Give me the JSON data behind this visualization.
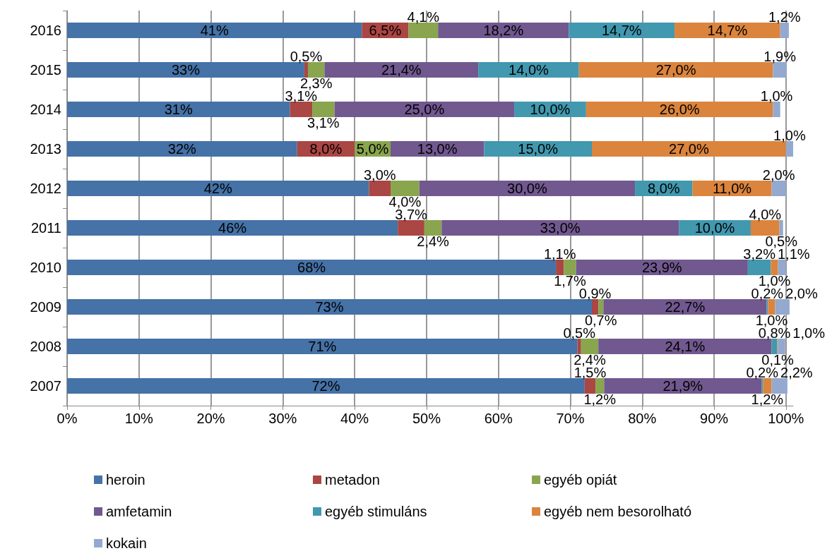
{
  "chart_data": {
    "type": "bar",
    "orientation": "horizontal",
    "stacked": true,
    "categories": [
      "2016",
      "2015",
      "2014",
      "2013",
      "2012",
      "2011",
      "2010",
      "2009",
      "2008",
      "2007"
    ],
    "series": [
      {
        "name": "heroin",
        "color": "#4572a7",
        "values": [
          41,
          33,
          31,
          32,
          42,
          46,
          68,
          73,
          71,
          72
        ],
        "value_labels": [
          "41%",
          "33%",
          "31%",
          "32%",
          "42%",
          "46%",
          "68%",
          "73%",
          "71%",
          "72%"
        ]
      },
      {
        "name": "metadon",
        "color": "#aa4643",
        "values": [
          6.5,
          0.5,
          3.1,
          8.0,
          3.0,
          3.7,
          1.1,
          0.9,
          0.5,
          1.5
        ],
        "value_labels": [
          "6,5%",
          "0,5%",
          "3,1%",
          "8,0%",
          "3,0%",
          "3,7%",
          "1,1%",
          "0,9%",
          "0,5%",
          "1,5%"
        ]
      },
      {
        "name": "egyéb opiát",
        "color": "#89a54e",
        "values": [
          4.1,
          2.3,
          3.1,
          5.0,
          4.0,
          2.4,
          1.7,
          0.7,
          2.4,
          1.2
        ],
        "value_labels": [
          "4,1%",
          "2,3%",
          "3,1%",
          "5,0%",
          "4,0%",
          "2,4%",
          "1,7%",
          "0,7%",
          "2,4%",
          "1,2%"
        ]
      },
      {
        "name": "amfetamin",
        "color": "#71588f",
        "values": [
          18.2,
          21.4,
          25.0,
          13.0,
          30.0,
          33.0,
          23.9,
          22.7,
          24.1,
          21.9
        ],
        "value_labels": [
          "18,2%",
          "21,4%",
          "25,0%",
          "13,0%",
          "30,0%",
          "33,0%",
          "23,9%",
          "22,7%",
          "24,1%",
          "21,9%"
        ]
      },
      {
        "name": "egyéb stimuláns",
        "color": "#4198af",
        "values": [
          14.7,
          14.0,
          10.0,
          15.0,
          8.0,
          10.0,
          3.2,
          0.2,
          0.8,
          0.2
        ],
        "value_labels": [
          "14,7%",
          "14,0%",
          "10,0%",
          "15,0%",
          "8,0%",
          "10,0%",
          "3,2%",
          "0,2%",
          "0,8%",
          "0,2%"
        ]
      },
      {
        "name": "egyéb nem besorolható",
        "color": "#db843d",
        "values": [
          14.7,
          27.0,
          26.0,
          27.0,
          11.0,
          4.0,
          1.0,
          1.0,
          0.1,
          1.2
        ],
        "value_labels": [
          "14,7%",
          "27,0%",
          "26,0%",
          "27,0%",
          "11,0%",
          "4,0%",
          "1,0%",
          "1,0%",
          "0,1%",
          "1,2%"
        ]
      },
      {
        "name": "kokain",
        "color": "#93a9cf",
        "values": [
          1.2,
          1.9,
          1.0,
          1.0,
          2.0,
          0.5,
          1.1,
          2.0,
          1.0,
          2.2
        ],
        "value_labels": [
          "1,2%",
          "1,9%",
          "1,0%",
          "1,0%",
          "2,0%",
          "0,5%",
          "1,1%",
          "2,0%",
          "1,0%",
          "2,2%"
        ]
      }
    ],
    "xlim": [
      0,
      101
    ],
    "xticks": [
      {
        "value": 0,
        "label": "0%"
      },
      {
        "value": 10,
        "label": "10%"
      },
      {
        "value": 20,
        "label": "20%"
      },
      {
        "value": 30,
        "label": "30%"
      },
      {
        "value": 40,
        "label": "40%"
      },
      {
        "value": 50,
        "label": "50%"
      },
      {
        "value": 60,
        "label": "60%"
      },
      {
        "value": 70,
        "label": "70%"
      },
      {
        "value": 80,
        "label": "80%"
      },
      {
        "value": 90,
        "label": "90%"
      },
      {
        "value": 100,
        "label": "100%"
      }
    ],
    "grid": "x",
    "legend": "bottom"
  }
}
